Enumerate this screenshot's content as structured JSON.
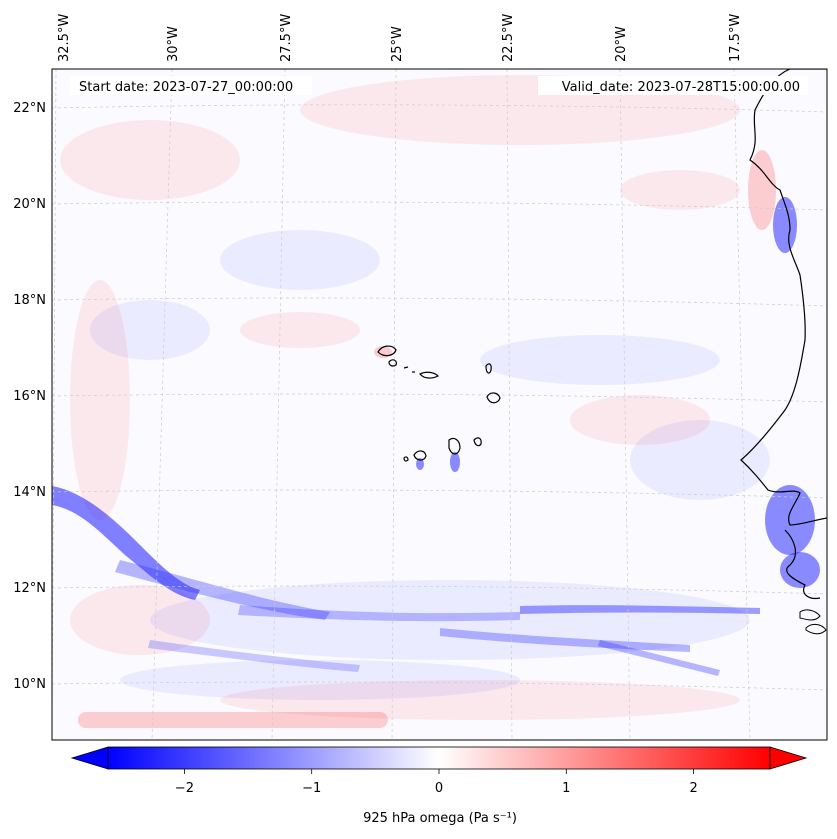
{
  "annotations": {
    "start_date": "Start date: 2023-07-27_00:00:00",
    "valid_date": "Valid_date: 2023-07-28T15:00:00.00"
  },
  "longitude_labels": [
    "32.5°W",
    "30°W",
    "27.5°W",
    "25°W",
    "22.5°W",
    "20°W",
    "17.5°W"
  ],
  "latitude_labels": [
    "22°N",
    "20°N",
    "18°N",
    "16°N",
    "14°N",
    "12°N",
    "10°N"
  ],
  "colorbar": {
    "label": "925 hPa omega (Pa s⁻¹)",
    "ticks": [
      "−2",
      "−1",
      "0",
      "1",
      "2"
    ],
    "tick_values": [
      -2,
      -1,
      0,
      1,
      2
    ],
    "range": [
      -2.6,
      2.6
    ],
    "colormap": "bwr",
    "extend": "both"
  },
  "colors": {
    "negative": "#0000ff",
    "neutral": "#ffffff",
    "positive": "#ff0000",
    "coastline": "#000000",
    "gridline": "#cccccc"
  }
}
